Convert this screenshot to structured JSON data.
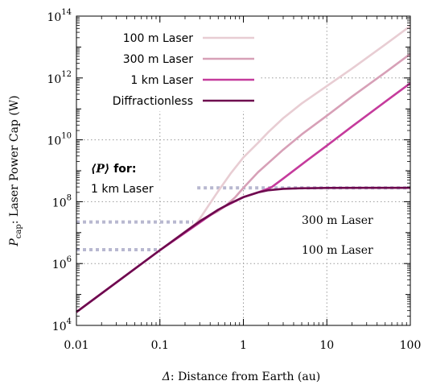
{
  "chart_data": {
    "type": "line",
    "xscale": "log",
    "yscale": "log",
    "xlim": [
      0.01,
      100
    ],
    "ylim": [
      10000,
      100000000000000
    ],
    "grid": true,
    "legend_position": "top-left",
    "xlabel_symbol": "Δ",
    "xlabel_text": ": Distance from Earth (au)",
    "ylabel_symbol": "P",
    "ylabel_sub": "cap",
    "ylabel_text": ": Laser Power Cap (W)",
    "x_ticks": [
      {
        "value": 0.01,
        "label": "0.01"
      },
      {
        "value": 0.1,
        "label": "0.1"
      },
      {
        "value": 1,
        "label": "1"
      },
      {
        "value": 10,
        "label": "10"
      },
      {
        "value": 100,
        "label": "100"
      }
    ],
    "y_ticks": [
      {
        "value": 10000,
        "base": "10",
        "exp": "4"
      },
      {
        "value": 1000000,
        "base": "10",
        "exp": "6"
      },
      {
        "value": 100000000,
        "base": "10",
        "exp": "8"
      },
      {
        "value": 10000000000,
        "base": "10",
        "exp": "10"
      },
      {
        "value": 1000000000000,
        "base": "10",
        "exp": "12"
      },
      {
        "value": 100000000000000,
        "base": "10",
        "exp": "14"
      }
    ],
    "series": [
      {
        "name": "100 m Laser",
        "color": "#e8cdd3",
        "points": [
          [
            0.01,
            27000
          ],
          [
            0.1,
            2700000
          ],
          [
            0.2,
            10000000
          ],
          [
            0.25,
            15000000
          ],
          [
            0.3,
            28000000
          ],
          [
            0.4,
            90000000
          ],
          [
            0.5,
            220000000
          ],
          [
            0.7,
            800000000
          ],
          [
            1,
            2700000000
          ],
          [
            1.5,
            8000000000
          ],
          [
            2,
            18000000000
          ],
          [
            3,
            50000000000
          ],
          [
            5,
            150000000000
          ],
          [
            10,
            550000000000
          ],
          [
            20,
            2000000000000
          ],
          [
            50,
            12000000000000
          ],
          [
            100,
            48000000000000
          ]
        ]
      },
      {
        "name": "300 m Laser",
        "color": "#d7a0b7",
        "points": [
          [
            0.01,
            27000
          ],
          [
            0.1,
            2700000
          ],
          [
            0.3,
            24000000
          ],
          [
            0.5,
            50000000
          ],
          [
            0.6,
            70000000
          ],
          [
            0.8,
            140000000
          ],
          [
            1,
            280000000
          ],
          [
            1.5,
            900000000
          ],
          [
            2,
            1800000000
          ],
          [
            3,
            4800000000
          ],
          [
            5,
            15000000000
          ],
          [
            10,
            60000000000
          ],
          [
            20,
            250000000000
          ],
          [
            50,
            1500000000000
          ],
          [
            100,
            6000000000000
          ]
        ]
      },
      {
        "name": "1 km Laser",
        "color": "#c53b9c",
        "points": [
          [
            0.01,
            27000
          ],
          [
            0.1,
            2700000
          ],
          [
            0.5,
            55000000
          ],
          [
            1,
            140000000
          ],
          [
            1.5,
            200000000
          ],
          [
            1.8,
            240000000
          ],
          [
            2.2,
            300000000
          ],
          [
            3,
            560000000
          ],
          [
            5,
            1600000000
          ],
          [
            10,
            6500000000
          ],
          [
            20,
            27000000000
          ],
          [
            50,
            170000000000
          ],
          [
            100,
            680000000000
          ]
        ]
      },
      {
        "name": "Diffractionless",
        "color": "#6e0a4f",
        "points": [
          [
            0.01,
            27000
          ],
          [
            0.1,
            2700000
          ],
          [
            0.2,
            10500000
          ],
          [
            0.3,
            23000000
          ],
          [
            0.5,
            55000000
          ],
          [
            0.7,
            90000000
          ],
          [
            1,
            140000000
          ],
          [
            1.5,
            200000000
          ],
          [
            2,
            235000000
          ],
          [
            3,
            260000000
          ],
          [
            5,
            272000000
          ],
          [
            10,
            278000000
          ],
          [
            30,
            280000000
          ],
          [
            100,
            280000000
          ]
        ]
      }
    ],
    "reference_lines": [
      {
        "label": "1 km Laser",
        "y": 280000000,
        "x_from": 0.28,
        "x_to": 100
      },
      {
        "label": "300 m Laser",
        "y": 22000000,
        "x_from": 0.01,
        "x_to": 0.25
      },
      {
        "label": "100 m Laser",
        "y": 2800000,
        "x_from": 0.01,
        "x_to": 0.1
      }
    ],
    "reference_line_color": "#b8b8d0",
    "annotation_heading_symbol": "⟨P⟩",
    "annotation_heading_text": " for:",
    "ref_labels": {
      "km1": "1 km Laser",
      "m300": "300 m Laser",
      "m100": "100 m Laser"
    }
  }
}
